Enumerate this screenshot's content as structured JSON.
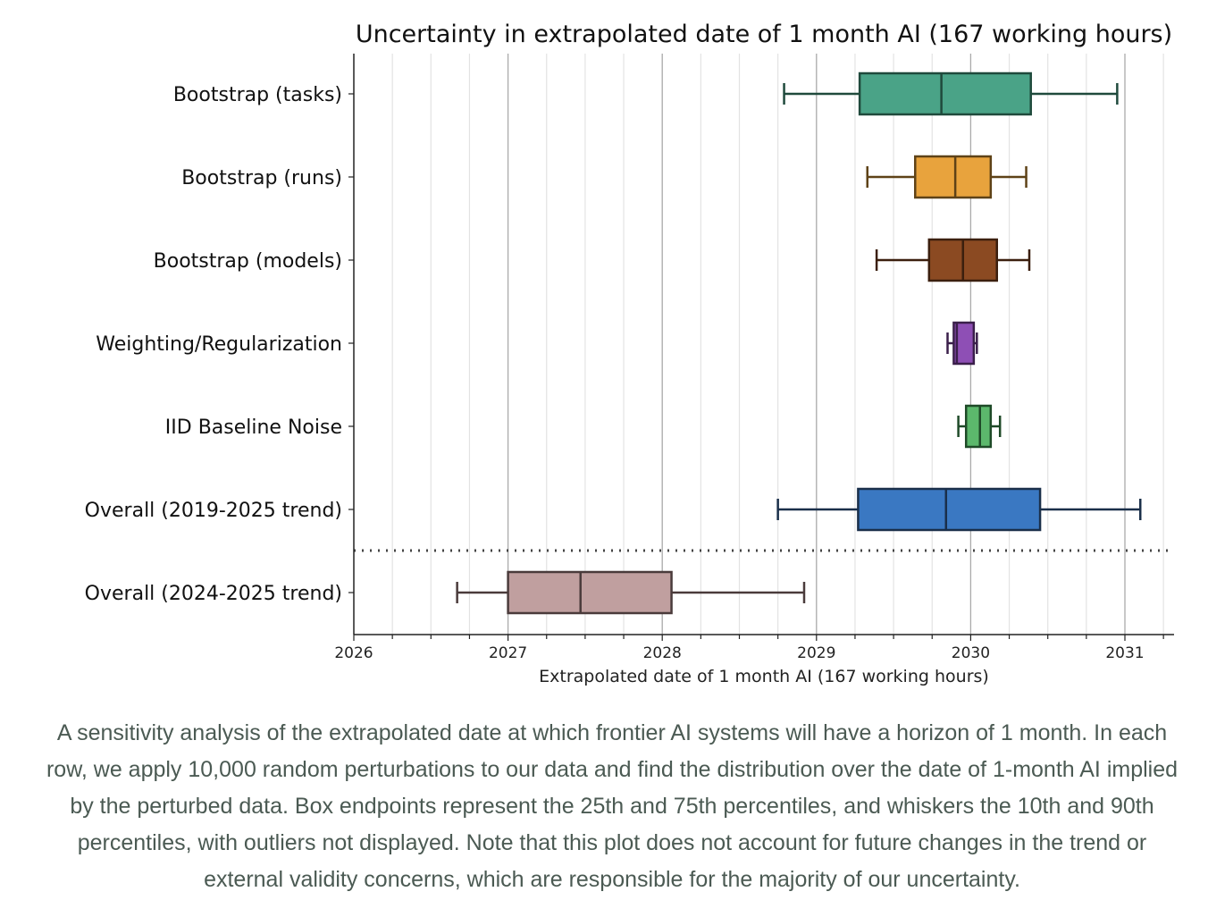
{
  "chart_data": {
    "type": "boxplot",
    "orientation": "horizontal",
    "title": "Uncertainty in extrapolated date of 1 month AI (167 working hours)",
    "xlabel": "Extrapolated date of 1 month AI (167 working hours)",
    "ylabel": "",
    "xlim": [
      2026,
      2031.3
    ],
    "xticks": [
      "2026",
      "2027",
      "2028",
      "2029",
      "2030",
      "2031"
    ],
    "minor_tick_interval": 0.25,
    "grid": "vertical",
    "series": [
      {
        "name": "Bootstrap (tasks)",
        "whisker_low": 2028.79,
        "q1": 2029.28,
        "median": 2029.81,
        "q3": 2030.39,
        "whisker_high": 2030.95,
        "color": "#4aa387",
        "edge": "#1f4a3c"
      },
      {
        "name": "Bootstrap (runs)",
        "whisker_low": 2029.33,
        "q1": 2029.64,
        "median": 2029.9,
        "q3": 2030.13,
        "whisker_high": 2030.36,
        "color": "#e8a33d",
        "edge": "#5e4217"
      },
      {
        "name": "Bootstrap (models)",
        "whisker_low": 2029.39,
        "q1": 2029.73,
        "median": 2029.95,
        "q3": 2030.17,
        "whisker_high": 2030.38,
        "color": "#8b4a22",
        "edge": "#3b1f0e"
      },
      {
        "name": "Weighting/Regularization",
        "whisker_low": 2029.85,
        "q1": 2029.89,
        "median": 2029.91,
        "q3": 2030.02,
        "whisker_high": 2030.04,
        "color": "#8e4fb5",
        "edge": "#3a1f4a"
      },
      {
        "name": "IID Baseline Noise",
        "whisker_low": 2029.92,
        "q1": 2029.97,
        "median": 2030.06,
        "q3": 2030.13,
        "whisker_high": 2030.19,
        "color": "#5cb86c",
        "edge": "#1f4a28"
      },
      {
        "name": "Overall (2019-2025 trend)",
        "whisker_low": 2028.75,
        "q1": 2029.27,
        "median": 2029.84,
        "q3": 2030.45,
        "whisker_high": 2031.1,
        "color": "#3a78c2",
        "edge": "#1a2f4a"
      },
      {
        "name": "Overall (2024-2025 trend)",
        "whisker_low": 2026.67,
        "q1": 2027.0,
        "median": 2027.47,
        "q3": 2028.06,
        "whisker_high": 2028.92,
        "color": "#c09f9f",
        "edge": "#4a3b3b"
      }
    ],
    "separator": "dotted line between Overall (2019-2025 trend) and Overall (2024-2025 trend)"
  },
  "caption": "A sensitivity analysis of the extrapolated date at which frontier AI systems will have a horizon of 1 month. In each row, we apply 10,000 random perturbations to our data and find the distribution over the date of 1-month AI implied by the perturbed data. Box endpoints represent the 25th and 75th percentiles, and whiskers the 10th and 90th percentiles, with outliers not displayed. Note that this plot does not account for future changes in the trend or external validity concerns, which are responsible for the majority of our uncertainty."
}
